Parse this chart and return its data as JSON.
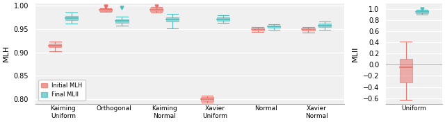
{
  "fig_width": 6.4,
  "fig_height": 1.76,
  "dpi": 100,
  "subplot1": {
    "ylabel": "MLH",
    "ylim": [
      0.79,
      1.005
    ],
    "yticks": [
      0.8,
      0.85,
      0.9,
      0.95,
      1.0
    ],
    "categories": [
      "Kaiming\nUniform",
      "Orthogonal",
      "Kaiming\nNormal",
      "Xavier\nUniform",
      "Normal",
      "Xavier\nNormal"
    ],
    "initial_color": "#E8736C",
    "final_color": "#4DBDBD",
    "initial_boxes": [
      {
        "med": 0.915,
        "q1": 0.912,
        "q3": 0.919,
        "whislo": 0.903,
        "whishi": 0.924,
        "fliers": []
      },
      {
        "med": 0.991,
        "q1": 0.989,
        "q3": 0.993,
        "whislo": 0.987,
        "whishi": 0.995,
        "fliers": [
          0.998,
          0.999
        ]
      },
      {
        "med": 0.991,
        "q1": 0.989,
        "q3": 0.994,
        "whislo": 0.985,
        "whishi": 0.997,
        "fliers": [
          0.999
        ]
      },
      {
        "med": 0.8,
        "q1": 0.796,
        "q3": 0.804,
        "whislo": 0.792,
        "whishi": 0.808,
        "fliers": []
      },
      {
        "med": 0.95,
        "q1": 0.947,
        "q3": 0.952,
        "whislo": 0.944,
        "whishi": 0.955,
        "fliers": []
      },
      {
        "med": 0.95,
        "q1": 0.947,
        "q3": 0.952,
        "whislo": 0.943,
        "whishi": 0.955,
        "fliers": []
      }
    ],
    "final_boxes": [
      {
        "med": 0.974,
        "q1": 0.97,
        "q3": 0.979,
        "whislo": 0.962,
        "whishi": 0.986,
        "fliers": []
      },
      {
        "med": 0.968,
        "q1": 0.964,
        "q3": 0.971,
        "whislo": 0.958,
        "whishi": 0.977,
        "fliers": [
          0.996
        ]
      },
      {
        "med": 0.971,
        "q1": 0.967,
        "q3": 0.975,
        "whislo": 0.952,
        "whishi": 0.982,
        "fliers": []
      },
      {
        "med": 0.971,
        "q1": 0.968,
        "q3": 0.975,
        "whislo": 0.963,
        "whishi": 0.98,
        "fliers": []
      },
      {
        "med": 0.956,
        "q1": 0.953,
        "q3": 0.958,
        "whislo": 0.949,
        "whishi": 0.961,
        "fliers": []
      },
      {
        "med": 0.958,
        "q1": 0.954,
        "q3": 0.962,
        "whislo": 0.949,
        "whishi": 0.967,
        "fliers": []
      }
    ]
  },
  "subplot2": {
    "ylabel": "MLII",
    "ylim": [
      -0.7,
      1.1
    ],
    "yticks": [
      -0.6,
      -0.4,
      -0.2,
      0.0,
      0.2,
      0.4,
      0.6,
      0.8,
      1.0
    ],
    "categories": [
      "Uniform"
    ],
    "initial_color": "#E8736C",
    "final_color": "#4DBDBD",
    "initial_boxes": [
      {
        "med": -0.05,
        "q1": -0.32,
        "q3": 0.1,
        "whislo": -0.63,
        "whishi": 0.42,
        "fliers": []
      }
    ],
    "final_boxes": [
      {
        "med": 0.955,
        "q1": 0.93,
        "q3": 0.975,
        "whislo": 0.9,
        "whishi": 0.99,
        "fliers": [
          1.0
        ]
      }
    ]
  },
  "legend_labels": [
    "Initial MLH",
    "Final MLII"
  ],
  "background_color": "#F0F0F0"
}
